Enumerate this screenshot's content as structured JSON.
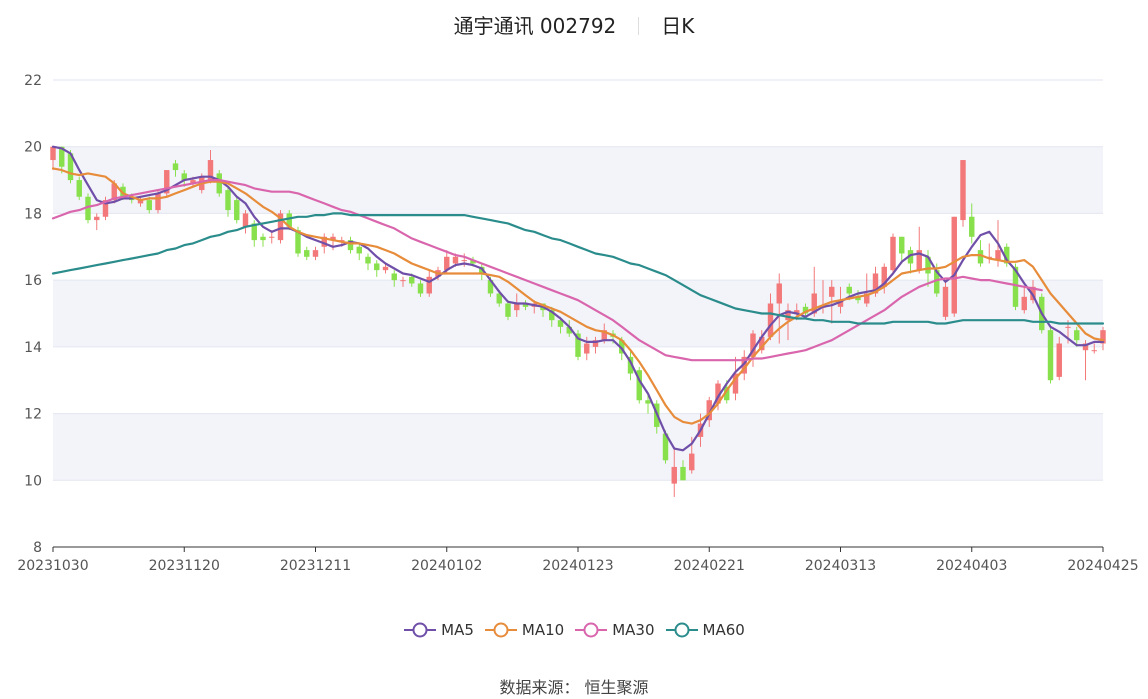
{
  "header": {
    "name": "通宇通讯 002792",
    "period": "日K"
  },
  "source_text": "数据来源：  恒生聚源",
  "colors": {
    "up": "#f2787a",
    "down": "#88e04c",
    "band": "#f3f4fa",
    "MA5": "#6f4fa8",
    "MA10": "#e78c3a",
    "MA30": "#d966ad",
    "MA60": "#2b8c8c"
  },
  "chart_data": {
    "type": "candlestick",
    "title": "通宇通讯 002792 日K",
    "ylim": [
      8,
      22
    ],
    "yticks": [
      8,
      10,
      12,
      14,
      16,
      18,
      20,
      22
    ],
    "xtick_labels": [
      "20231030",
      "20231120",
      "20231211",
      "20240102",
      "20240123",
      "20240221",
      "20240313",
      "20240403",
      "20240425"
    ],
    "xtick_index": [
      0,
      15,
      30,
      45,
      60,
      75,
      90,
      105,
      120
    ],
    "n_days": 121,
    "legend": [
      "MA5",
      "MA10",
      "MA30",
      "MA60"
    ],
    "ohlc": [
      [
        19.6,
        20.0,
        20.0,
        19.3
      ],
      [
        20.0,
        19.4,
        20.0,
        19.2
      ],
      [
        19.8,
        19.0,
        19.9,
        18.9
      ],
      [
        19.0,
        18.5,
        19.1,
        18.4
      ],
      [
        18.5,
        17.8,
        18.6,
        17.7
      ],
      [
        17.8,
        17.9,
        18.0,
        17.5
      ],
      [
        17.9,
        18.4,
        18.5,
        17.8
      ],
      [
        18.4,
        18.9,
        19.0,
        18.3
      ],
      [
        18.8,
        18.5,
        18.9,
        18.4
      ],
      [
        18.5,
        18.4,
        18.6,
        18.3
      ],
      [
        18.3,
        18.4,
        18.5,
        18.2
      ],
      [
        18.4,
        18.1,
        18.5,
        18.0
      ],
      [
        18.1,
        18.6,
        18.7,
        18.0
      ],
      [
        18.6,
        19.3,
        19.3,
        18.5
      ],
      [
        19.5,
        19.3,
        19.6,
        19.1
      ],
      [
        19.2,
        19.0,
        19.3,
        18.8
      ],
      [
        18.9,
        19.0,
        19.1,
        18.8
      ],
      [
        18.7,
        19.1,
        19.2,
        18.6
      ],
      [
        19.0,
        19.6,
        19.9,
        18.9
      ],
      [
        19.2,
        18.6,
        19.3,
        18.5
      ],
      [
        18.7,
        18.1,
        18.8,
        17.9
      ],
      [
        18.4,
        17.8,
        18.5,
        17.7
      ],
      [
        17.6,
        18.0,
        18.1,
        17.4
      ],
      [
        17.7,
        17.2,
        17.8,
        17.0
      ],
      [
        17.3,
        17.2,
        17.4,
        17.0
      ],
      [
        17.3,
        17.3,
        17.5,
        17.1
      ],
      [
        17.2,
        18.0,
        18.1,
        17.1
      ],
      [
        18.0,
        17.6,
        18.1,
        17.5
      ],
      [
        17.5,
        16.8,
        17.6,
        16.7
      ],
      [
        16.9,
        16.7,
        17.0,
        16.6
      ],
      [
        16.7,
        16.9,
        17.0,
        16.6
      ],
      [
        17.0,
        17.3,
        17.4,
        16.8
      ],
      [
        17.2,
        17.3,
        17.4,
        16.9
      ],
      [
        17.2,
        17.2,
        17.3,
        17.0
      ],
      [
        17.2,
        16.9,
        17.3,
        16.8
      ],
      [
        17.0,
        16.8,
        17.1,
        16.6
      ],
      [
        16.7,
        16.5,
        16.8,
        16.3
      ],
      [
        16.5,
        16.3,
        16.6,
        16.1
      ],
      [
        16.3,
        16.4,
        16.5,
        16.2
      ],
      [
        16.2,
        16.0,
        16.3,
        15.8
      ],
      [
        16.0,
        16.0,
        16.1,
        15.8
      ],
      [
        16.1,
        15.9,
        16.2,
        15.8
      ],
      [
        15.9,
        15.6,
        16.0,
        15.5
      ],
      [
        15.6,
        16.1,
        16.3,
        15.5
      ],
      [
        16.1,
        16.3,
        16.4,
        16.0
      ],
      [
        16.3,
        16.7,
        16.9,
        16.2
      ],
      [
        16.5,
        16.7,
        16.8,
        16.4
      ],
      [
        16.6,
        16.6,
        16.8,
        16.4
      ],
      [
        16.6,
        16.5,
        16.7,
        16.4
      ],
      [
        16.4,
        16.2,
        16.5,
        16.0
      ],
      [
        16.0,
        15.6,
        16.1,
        15.5
      ],
      [
        15.6,
        15.3,
        15.7,
        15.2
      ],
      [
        15.3,
        14.9,
        15.4,
        14.8
      ],
      [
        15.1,
        15.3,
        15.6,
        14.9
      ],
      [
        15.3,
        15.2,
        15.4,
        15.1
      ],
      [
        15.2,
        15.3,
        15.4,
        15.0
      ],
      [
        15.3,
        15.1,
        15.3,
        14.9
      ],
      [
        15.1,
        14.8,
        15.2,
        14.6
      ],
      [
        14.8,
        14.6,
        14.9,
        14.4
      ],
      [
        14.6,
        14.4,
        14.8,
        14.3
      ],
      [
        14.4,
        13.7,
        14.5,
        13.6
      ],
      [
        13.8,
        14.1,
        14.3,
        13.6
      ],
      [
        14.0,
        14.2,
        14.3,
        13.8
      ],
      [
        14.2,
        14.5,
        14.7,
        14.1
      ],
      [
        14.4,
        14.3,
        14.5,
        14.1
      ],
      [
        14.2,
        13.8,
        14.3,
        13.6
      ],
      [
        13.7,
        13.2,
        13.9,
        13.0
      ],
      [
        13.3,
        12.4,
        13.4,
        12.3
      ],
      [
        12.4,
        12.3,
        12.6,
        12.0
      ],
      [
        12.3,
        11.6,
        12.4,
        11.4
      ],
      [
        11.4,
        10.6,
        11.5,
        10.5
      ],
      [
        9.9,
        10.4,
        11.0,
        9.5
      ],
      [
        10.4,
        10.0,
        10.6,
        10.0
      ],
      [
        10.3,
        10.8,
        11.3,
        10.2
      ],
      [
        11.3,
        11.7,
        12.0,
        11.0
      ],
      [
        11.8,
        12.4,
        12.5,
        11.6
      ],
      [
        12.3,
        12.9,
        13.0,
        12.1
      ],
      [
        12.8,
        12.4,
        13.0,
        12.3
      ],
      [
        12.6,
        13.2,
        13.7,
        12.4
      ],
      [
        13.2,
        13.7,
        13.9,
        13.0
      ],
      [
        13.7,
        14.4,
        14.5,
        13.4
      ],
      [
        13.9,
        14.3,
        14.5,
        13.8
      ],
      [
        14.3,
        15.3,
        15.6,
        14.2
      ],
      [
        15.3,
        15.9,
        16.2,
        14.1
      ],
      [
        14.8,
        15.1,
        15.3,
        14.2
      ],
      [
        15.0,
        15.1,
        15.3,
        14.8
      ],
      [
        15.2,
        15.0,
        15.3,
        14.9
      ],
      [
        15.0,
        15.6,
        16.4,
        14.9
      ],
      [
        15.2,
        15.2,
        16.0,
        15.0
      ],
      [
        15.5,
        15.8,
        16.0,
        14.7
      ],
      [
        15.2,
        15.4,
        15.8,
        15.0
      ],
      [
        15.8,
        15.6,
        15.9,
        15.4
      ],
      [
        15.5,
        15.4,
        15.7,
        15.3
      ],
      [
        15.3,
        15.6,
        16.2,
        15.2
      ],
      [
        15.6,
        16.2,
        16.4,
        15.5
      ],
      [
        15.8,
        16.4,
        16.5,
        15.6
      ],
      [
        16.3,
        17.3,
        17.4,
        16.2
      ],
      [
        17.3,
        16.8,
        17.3,
        16.5
      ],
      [
        16.9,
        16.5,
        17.0,
        16.2
      ],
      [
        16.3,
        16.9,
        17.6,
        16.2
      ],
      [
        16.7,
        16.2,
        16.9,
        15.8
      ],
      [
        16.3,
        15.6,
        16.5,
        15.5
      ],
      [
        14.9,
        15.8,
        16.0,
        14.8
      ],
      [
        15.0,
        17.9,
        17.9,
        14.9
      ],
      [
        17.8,
        19.6,
        19.6,
        17.6
      ],
      [
        17.9,
        17.3,
        18.3,
        17.1
      ],
      [
        16.9,
        16.5,
        17.2,
        16.4
      ],
      [
        16.7,
        16.7,
        17.1,
        16.5
      ],
      [
        16.6,
        16.9,
        17.8,
        16.4
      ],
      [
        17.0,
        16.5,
        17.1,
        16.4
      ],
      [
        16.4,
        15.2,
        16.5,
        15.1
      ],
      [
        15.1,
        15.5,
        15.8,
        15.0
      ],
      [
        15.4,
        15.8,
        16.0,
        15.3
      ],
      [
        15.5,
        14.5,
        15.6,
        14.4
      ],
      [
        14.5,
        13.0,
        14.6,
        12.9
      ],
      [
        13.1,
        14.1,
        14.3,
        13.0
      ],
      [
        14.6,
        14.6,
        14.8,
        14.1
      ],
      [
        14.5,
        14.2,
        14.6,
        14.0
      ],
      [
        13.9,
        14.1,
        14.2,
        13.0
      ],
      [
        13.9,
        13.9,
        14.1,
        13.8
      ],
      [
        14.1,
        14.5,
        14.6,
        13.9
      ]
    ],
    "series": {
      "MA5": [
        20.0,
        19.95,
        19.8,
        19.3,
        18.85,
        18.4,
        18.3,
        18.35,
        18.45,
        18.45,
        18.5,
        18.55,
        18.6,
        18.7,
        18.85,
        19.0,
        19.05,
        19.1,
        19.1,
        19.0,
        18.8,
        18.5,
        18.3,
        17.9,
        17.6,
        17.45,
        17.55,
        17.55,
        17.45,
        17.3,
        17.2,
        17.1,
        17.0,
        17.05,
        17.15,
        17.1,
        16.95,
        16.7,
        16.5,
        16.35,
        16.2,
        16.15,
        16.05,
        15.95,
        16.1,
        16.3,
        16.45,
        16.5,
        16.45,
        16.35,
        16.0,
        15.65,
        15.35,
        15.3,
        15.3,
        15.25,
        15.2,
        15.05,
        14.85,
        14.6,
        14.25,
        14.15,
        14.15,
        14.2,
        14.2,
        13.95,
        13.55,
        13.0,
        12.6,
        12.0,
        11.4,
        10.95,
        10.9,
        11.1,
        11.5,
        12.0,
        12.5,
        12.9,
        13.25,
        13.5,
        13.9,
        14.3,
        14.65,
        14.95,
        15.05,
        15.0,
        14.9,
        15.05,
        15.2,
        15.25,
        15.35,
        15.5,
        15.6,
        15.65,
        15.7,
        15.9,
        16.2,
        16.55,
        16.75,
        16.8,
        16.7,
        16.25,
        15.95,
        16.15,
        16.6,
        17.0,
        17.35,
        17.45,
        17.1,
        16.6,
        16.3,
        15.9,
        15.55,
        15.0,
        14.6,
        14.45,
        14.25,
        14.05,
        14.05,
        14.15,
        14.15
      ],
      "MA10": [
        19.35,
        19.3,
        19.2,
        19.15,
        19.2,
        19.15,
        19.1,
        18.9,
        18.6,
        18.5,
        18.4,
        18.45,
        18.45,
        18.5,
        18.6,
        18.7,
        18.8,
        18.9,
        18.95,
        18.95,
        18.9,
        18.75,
        18.6,
        18.4,
        18.2,
        18.05,
        17.85,
        17.6,
        17.45,
        17.35,
        17.3,
        17.25,
        17.2,
        17.15,
        17.1,
        17.1,
        17.05,
        17.0,
        16.9,
        16.8,
        16.65,
        16.5,
        16.4,
        16.3,
        16.2,
        16.2,
        16.2,
        16.2,
        16.2,
        16.2,
        16.15,
        16.1,
        15.95,
        15.75,
        15.55,
        15.35,
        15.25,
        15.15,
        15.05,
        14.9,
        14.75,
        14.6,
        14.5,
        14.45,
        14.35,
        14.2,
        13.9,
        13.55,
        13.15,
        12.7,
        12.25,
        11.9,
        11.75,
        11.7,
        11.8,
        12.0,
        12.3,
        12.7,
        13.05,
        13.35,
        13.7,
        14.0,
        14.3,
        14.55,
        14.75,
        14.9,
        15.05,
        15.15,
        15.25,
        15.35,
        15.4,
        15.45,
        15.5,
        15.55,
        15.65,
        15.8,
        16.0,
        16.2,
        16.25,
        16.3,
        16.35,
        16.35,
        16.4,
        16.55,
        16.7,
        16.75,
        16.75,
        16.65,
        16.6,
        16.55,
        16.55,
        16.6,
        16.4,
        16.0,
        15.6,
        15.3,
        15.0,
        14.7,
        14.4,
        14.25,
        14.2
      ],
      "MA30": [
        17.85,
        17.95,
        18.05,
        18.1,
        18.2,
        18.25,
        18.35,
        18.45,
        18.5,
        18.55,
        18.6,
        18.65,
        18.7,
        18.75,
        18.8,
        18.85,
        18.9,
        18.95,
        19.0,
        19.0,
        18.95,
        18.9,
        18.85,
        18.75,
        18.7,
        18.65,
        18.65,
        18.65,
        18.6,
        18.5,
        18.4,
        18.3,
        18.2,
        18.1,
        18.05,
        17.95,
        17.85,
        17.75,
        17.65,
        17.55,
        17.4,
        17.25,
        17.15,
        17.05,
        16.95,
        16.85,
        16.75,
        16.7,
        16.6,
        16.5,
        16.4,
        16.3,
        16.2,
        16.1,
        16.0,
        15.9,
        15.8,
        15.7,
        15.6,
        15.5,
        15.4,
        15.25,
        15.1,
        14.95,
        14.8,
        14.6,
        14.4,
        14.2,
        14.05,
        13.9,
        13.75,
        13.7,
        13.65,
        13.6,
        13.6,
        13.6,
        13.6,
        13.6,
        13.6,
        13.6,
        13.65,
        13.65,
        13.7,
        13.75,
        13.8,
        13.85,
        13.9,
        14.0,
        14.1,
        14.2,
        14.35,
        14.5,
        14.65,
        14.8,
        14.95,
        15.1,
        15.3,
        15.5,
        15.65,
        15.8,
        15.9,
        16.0,
        16.05,
        16.05,
        16.1,
        16.05,
        16.0,
        16.0,
        15.95,
        15.9,
        15.85,
        15.8,
        15.75,
        15.7
      ],
      "MA60": [
        16.2,
        16.25,
        16.3,
        16.35,
        16.4,
        16.45,
        16.5,
        16.55,
        16.6,
        16.65,
        16.7,
        16.75,
        16.8,
        16.9,
        16.95,
        17.05,
        17.1,
        17.2,
        17.3,
        17.35,
        17.45,
        17.5,
        17.6,
        17.65,
        17.7,
        17.75,
        17.8,
        17.85,
        17.9,
        17.9,
        17.95,
        17.95,
        18.0,
        18.0,
        17.95,
        17.95,
        17.95,
        17.95,
        17.95,
        17.95,
        17.95,
        17.95,
        17.95,
        17.95,
        17.95,
        17.95,
        17.95,
        17.95,
        17.9,
        17.85,
        17.8,
        17.75,
        17.7,
        17.6,
        17.5,
        17.45,
        17.35,
        17.25,
        17.2,
        17.1,
        17.0,
        16.9,
        16.8,
        16.75,
        16.7,
        16.6,
        16.5,
        16.45,
        16.35,
        16.25,
        16.15,
        16.0,
        15.85,
        15.7,
        15.55,
        15.45,
        15.35,
        15.25,
        15.15,
        15.1,
        15.05,
        15.0,
        15.0,
        14.95,
        14.9,
        14.85,
        14.85,
        14.8,
        14.8,
        14.75,
        14.75,
        14.75,
        14.7,
        14.7,
        14.7,
        14.7,
        14.75,
        14.75,
        14.75,
        14.75,
        14.75,
        14.7,
        14.7,
        14.75,
        14.8,
        14.8,
        14.8,
        14.8,
        14.8,
        14.8,
        14.8,
        14.8,
        14.75,
        14.75,
        14.75,
        14.7,
        14.7,
        14.7,
        14.7,
        14.7,
        14.7
      ]
    }
  }
}
